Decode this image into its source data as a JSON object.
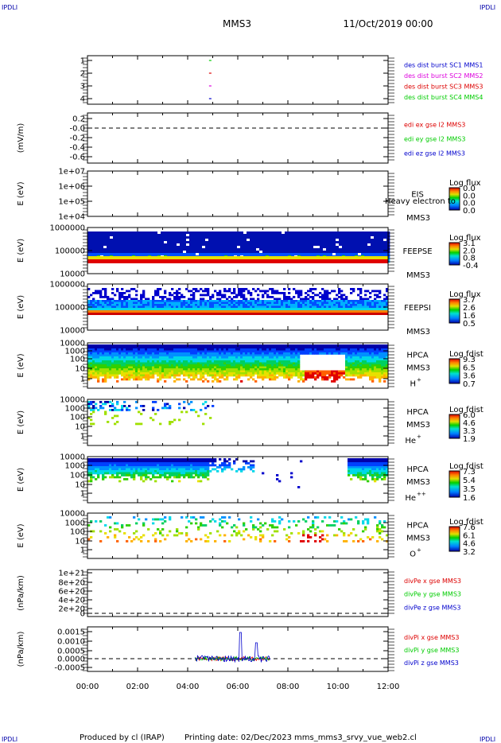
{
  "header": {
    "corner_tl": "IPDLI",
    "corner_tr": "IPDLI",
    "corner_bl": "IPDLI",
    "corner_br": "IPDLI",
    "title": "MMS3",
    "date": "11/Oct/2019 00:00"
  },
  "footer": {
    "produced": "Produced by cl (IRAP)",
    "printing": "Printing date: 02/Dec/2023",
    "file": "mms_mms3_srvy_vue_web2.cl"
  },
  "colors": {
    "red": "#dd0000",
    "magenta": "#dd00dd",
    "green": "#00cc00",
    "blue": "#0000cc"
  },
  "chart_data": [
    {
      "type": "scatter",
      "id": "burst",
      "ylabel": "",
      "yticks": [
        "1",
        "2",
        "3",
        "4"
      ],
      "ylim": [
        0.6,
        4.4
      ],
      "legend": [
        "des dist burst SC1 MMS1",
        "des dist burst SC2 MMS2",
        "des dist burst SC3 MMS3",
        "des dist burst SC4 MMS4"
      ],
      "points": [
        {
          "x": 4.9,
          "y": 4
        },
        {
          "x": 4.9,
          "y": 3
        },
        {
          "x": 4.9,
          "y": 2
        },
        {
          "x": 4.9,
          "y": 1
        }
      ]
    },
    {
      "type": "line",
      "id": "edi",
      "ylabel": "(mV/m)",
      "yticks": [
        "0.2",
        "-0.0",
        "-0.2",
        "-0.4",
        "-0.6"
      ],
      "ylim": [
        -0.7,
        0.3
      ],
      "legend": [
        "edi ex gse l2 MMS3",
        "edi ey gse l2 MMS3",
        "edi ez gse l2 MMS3"
      ]
    },
    {
      "type": "heatmap",
      "id": "eis",
      "ylabel": "E (eV)",
      "yticks": [
        "1e+07",
        "1e+06",
        "1e+05",
        "1e+04"
      ],
      "inst": "EIS",
      "sub": "MMS3",
      "overlay": "Heavy electron to",
      "cb_title": "Log flux",
      "cb_ticks": [
        "0.0",
        "0.0",
        "0.0",
        "0.0"
      ]
    },
    {
      "type": "heatmap",
      "id": "feepse",
      "ylabel": "E (eV)",
      "yticks": [
        "1000000",
        "100000",
        "10000"
      ],
      "inst": "FEEPSE",
      "sub": "MMS3",
      "cb_title": "Log flux",
      "cb_ticks": [
        "3.1",
        "2.0",
        "0.8",
        "-0.4"
      ]
    },
    {
      "type": "heatmap",
      "id": "feepsi",
      "ylabel": "E (eV)",
      "yticks": [
        "1000000",
        "100000",
        "10000"
      ],
      "inst": "FEEPSI",
      "sub": "MMS3",
      "cb_title": "Log flux",
      "cb_ticks": [
        "3.7",
        "2.6",
        "1.6",
        "0.5"
      ]
    },
    {
      "type": "heatmap",
      "id": "hpca_h",
      "ylabel": "E (eV)",
      "yticks": [
        "10000",
        "1000",
        "100",
        "10",
        "1"
      ],
      "inst": "HPCA",
      "sub": "MMS3",
      "species": "H",
      "sup": "+",
      "cb_title": "Log fdist",
      "cb_ticks": [
        "9.3",
        "6.5",
        "3.6",
        "0.7"
      ]
    },
    {
      "type": "heatmap",
      "id": "hpca_he",
      "ylabel": "E (eV)",
      "yticks": [
        "10000",
        "1000",
        "100",
        "10",
        "1"
      ],
      "inst": "HPCA",
      "sub": "MMS3",
      "species": "He",
      "sup": "+",
      "cb_title": "Log fdist",
      "cb_ticks": [
        "6.0",
        "4.6",
        "3.3",
        "1.9"
      ]
    },
    {
      "type": "heatmap",
      "id": "hpca_he2",
      "ylabel": "E (eV)",
      "yticks": [
        "10000",
        "1000",
        "100",
        "10",
        "1"
      ],
      "inst": "HPCA",
      "sub": "MMS3",
      "species": "He",
      "sup": "++",
      "cb_title": "Log fdist",
      "cb_ticks": [
        "7.3",
        "5.4",
        "3.5",
        "1.6"
      ]
    },
    {
      "type": "heatmap",
      "id": "hpca_o",
      "ylabel": "E (eV)",
      "yticks": [
        "10000",
        "1000",
        "100",
        "10",
        "1"
      ],
      "inst": "HPCA",
      "sub": "MMS3",
      "species": "O",
      "sup": "+",
      "cb_title": "Log fdist",
      "cb_ticks": [
        "7.6",
        "6.1",
        "4.6",
        "3.2"
      ]
    },
    {
      "type": "line",
      "id": "divpe",
      "ylabel": "(nPa/km)",
      "yticks": [
        "1e+21",
        "8e+20",
        "6e+20",
        "4e+20",
        "2e+20",
        "0"
      ],
      "ylim": [
        -1e+20,
        1.05e+21
      ],
      "legend": [
        "divPe x gse MMS3",
        "divPe y gse MMS3",
        "divPe z gse MMS3"
      ]
    },
    {
      "type": "line",
      "id": "divpi",
      "ylabel": "(nPa/km)",
      "yticks": [
        "0.0015",
        "0.0010",
        "0.0005",
        "0.0000",
        "-0.0005"
      ],
      "ylim": [
        -0.00085,
        0.00185
      ],
      "legend": [
        "divPi x gse MMS3",
        "divPi y gse MMS3",
        "divPi z gse MMS3"
      ],
      "x_range": [
        4.3,
        7.3
      ]
    }
  ],
  "xaxis": {
    "ticks": [
      "00:00",
      "02:00",
      "04:00",
      "06:00",
      "08:00",
      "10:00",
      "12:00"
    ],
    "range": [
      0,
      12
    ]
  }
}
